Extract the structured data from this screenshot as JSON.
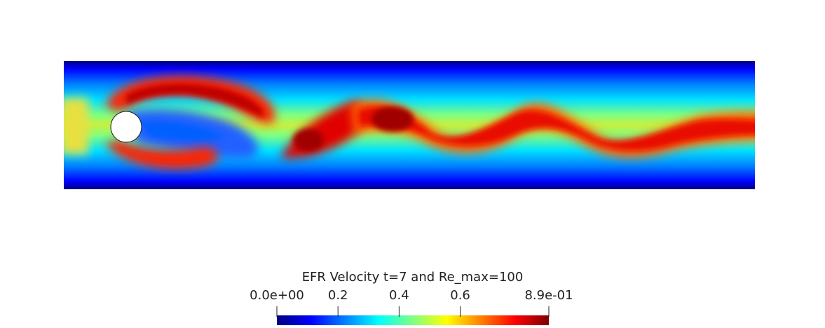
{
  "visualization": {
    "field": "velocity magnitude",
    "colormap": [
      "#00007f",
      "#0000ff",
      "#0080ff",
      "#00ffff",
      "#80ff80",
      "#ffff00",
      "#ff8000",
      "#ff0000",
      "#7f0000"
    ],
    "background": "#ffffff",
    "obstacle_color": "#ffffff"
  },
  "colorbar": {
    "title": "EFR Velocity t=7 and Re_max=100",
    "range": [
      0.0,
      0.89
    ],
    "ticks": [
      {
        "value": 0.0,
        "label": "0.0e+00"
      },
      {
        "value": 0.2,
        "label": "0.2"
      },
      {
        "value": 0.4,
        "label": "0.4"
      },
      {
        "value": 0.6,
        "label": "0.6"
      },
      {
        "value": 0.89,
        "label": "8.9e-01"
      }
    ]
  }
}
